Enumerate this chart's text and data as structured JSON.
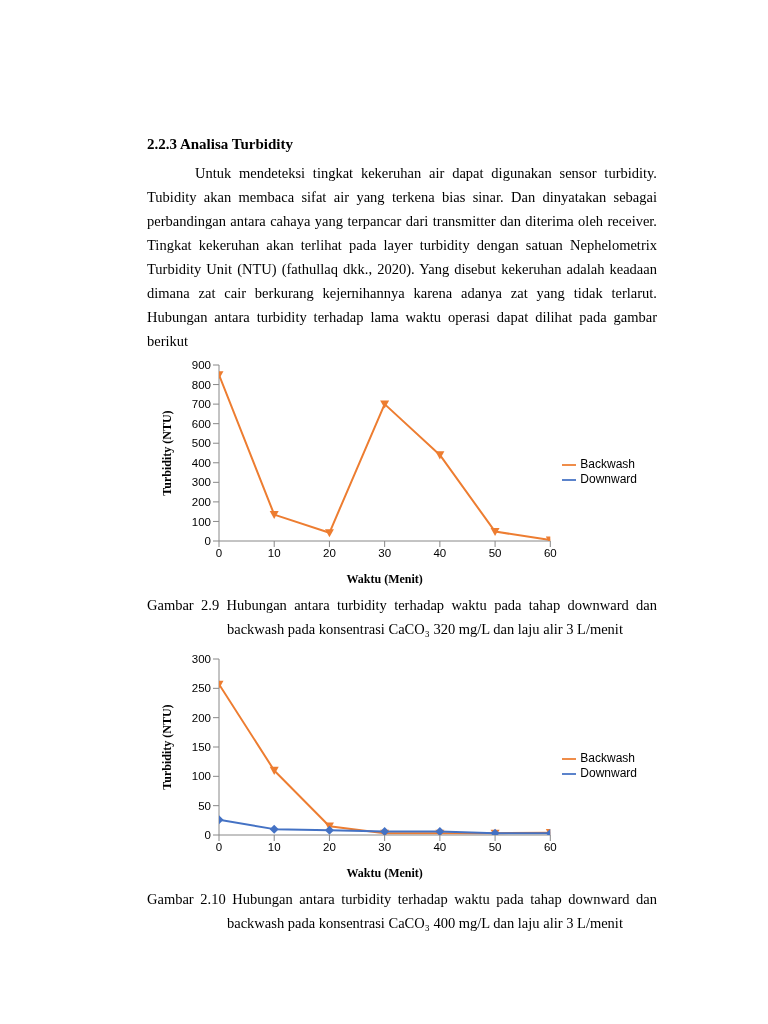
{
  "chart_data": [
    {
      "type": "line",
      "title": "2.2.3 Analisa Turbidity",
      "subtitle": "Untuk mendeteksi tingkat kekeruhan air dapat digunakan sensor turbidity. Tubidity akan membaca sifat air yang terkena bias sinar. Dan dinyatakan sebagai perbandingan antara cahaya yang terpancar dari transmitter dan diterima oleh receiver. Tingkat kekeruhan akan terlihat pada layer turbidity dengan satuan Nephelometrix Turbidity Unit (NTU) (fathullaq dkk., 2020). Yang disebut kekeruhan adalah keadaan dimana zat cair berkurang kejernihannya karena adanya zat yang tidak terlarut. Hubungan antara turbidity terhadap lama waktu operasi dapat dilihat pada gambar berikut",
      "xlabel": "Waktu (Menit)",
      "ylabel": "Turbidity (NTU)",
      "x": [
        0,
        10,
        20,
        30,
        40,
        50,
        60
      ],
      "series": [
        {
          "name": "Downward",
          "color": "#4472c4",
          "marker": "diamond",
          "values": [
            null,
            null,
            null,
            null,
            null,
            null,
            null
          ]
        },
        {
          "name": "Backwash",
          "color": "#ed7d31",
          "marker": "triangle",
          "values": [
            850,
            135,
            42,
            700,
            440,
            48,
            5
          ]
        }
      ],
      "xlim": [
        0,
        60
      ],
      "xticks": [
        0,
        10,
        20,
        30,
        40,
        50,
        60
      ],
      "ylim": [
        0,
        900
      ],
      "yticks": [
        0,
        100,
        200,
        300,
        400,
        500,
        600,
        700,
        800,
        900
      ],
      "legend": "right",
      "line_style": "solid",
      "annotations": [
        "Gambar 2.9 Hubungan antara turbidity terhadap waktu pada tahap downward dan backwash pada konsentrasi CaCO₃ 320 mg/L dan laju alir 3 L/menit"
      ]
    },
    {
      "type": "line",
      "xlabel": "Waktu (Menit)",
      "ylabel": "Turbidity (NTU)",
      "x": [
        0,
        10,
        20,
        30,
        40,
        50,
        60
      ],
      "series": [
        {
          "name": "Downward",
          "color": "#4472c4",
          "marker": "diamond",
          "values": [
            26,
            10,
            8,
            6,
            6,
            3,
            3
          ]
        },
        {
          "name": "Backwash",
          "color": "#ed7d31",
          "marker": "triangle",
          "values": [
            257,
            110,
            15,
            3,
            3,
            3,
            4
          ]
        }
      ],
      "xlim": [
        0,
        60
      ],
      "xticks": [
        0,
        10,
        20,
        30,
        40,
        50,
        60
      ],
      "ylim": [
        0,
        300
      ],
      "yticks": [
        0,
        50,
        100,
        150,
        200,
        250,
        300
      ],
      "legend": "right",
      "line_style": "solid",
      "annotations": [
        "Gambar 2.10 Hubungan antara turbidity terhadap waktu pada tahap downward dan backwash pada konsentrasi CaCO₃ 400 mg/L dan laju alir 3 L/menit"
      ]
    }
  ]
}
